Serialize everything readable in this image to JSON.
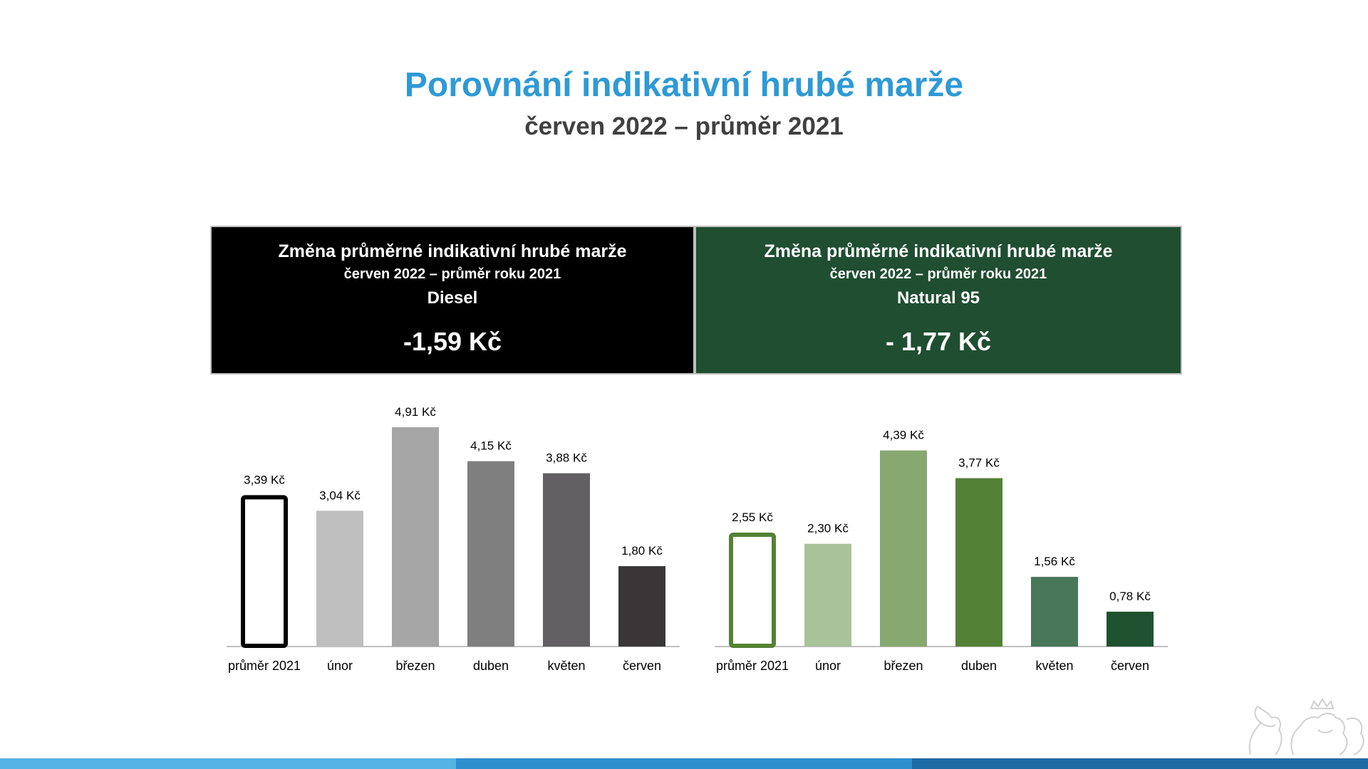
{
  "header": {
    "title": "Porovnání indikativní hrubé marže",
    "subtitle": "červen 2022 – průměr 2021"
  },
  "panels": {
    "diesel": {
      "heading": "Změna průměrné indikativní hrubé marže",
      "period": "červen 2022 – průměr roku 2021",
      "fuel": "Diesel",
      "change": "-1,59 Kč"
    },
    "natural": {
      "heading": "Změna průměrné indikativní hrubé marže",
      "period": "červen 2022 – průměr roku 2021",
      "fuel": "Natural 95",
      "change": "- 1,77 Kč"
    }
  },
  "chart_data": [
    {
      "type": "bar",
      "categories": [
        "průměr 2021",
        "únor",
        "březen",
        "duben",
        "květen",
        "červen"
      ],
      "values": [
        3.39,
        3.04,
        4.91,
        4.15,
        3.88,
        1.8
      ],
      "labels": [
        "3,39 Kč",
        "3,04 Kč",
        "4,91 Kč",
        "4,15 Kč",
        "3,88 Kč",
        "1,80 Kč"
      ],
      "colors": [
        "#ffffff",
        "#bfbfbf",
        "#a6a6a6",
        "#7f7f7f",
        "#626062",
        "#3a3637"
      ],
      "outline_first": "#000000",
      "ylim": [
        0,
        5.5
      ]
    },
    {
      "type": "bar",
      "categories": [
        "průměr 2021",
        "únor",
        "březen",
        "duben",
        "květen",
        "červen"
      ],
      "values": [
        2.55,
        2.3,
        4.39,
        3.77,
        1.56,
        0.78
      ],
      "labels": [
        "2,55 Kč",
        "2,30 Kč",
        "4,39 Kč",
        "3,77 Kč",
        "1,56 Kč",
        "0,78 Kč"
      ],
      "colors": [
        "#ffffff",
        "#a9c29a",
        "#87a86f",
        "#538135",
        "#49775a",
        "#1f5230"
      ],
      "outline_first": "#548235",
      "ylim": [
        0,
        5.5
      ]
    }
  ],
  "footer": {
    "bar_colors": [
      "#55b3e6",
      "#2e8fcf",
      "#1f6aa3"
    ]
  }
}
